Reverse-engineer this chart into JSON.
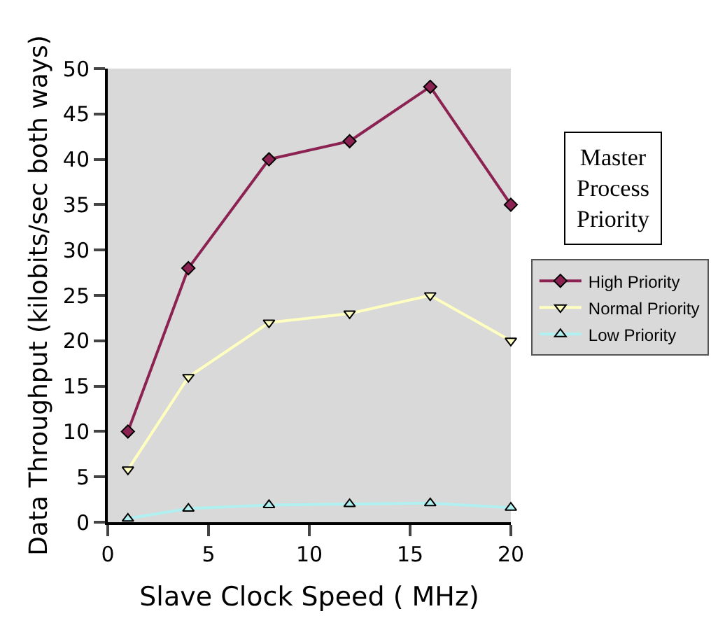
{
  "chart_data": {
    "type": "line",
    "xlabel": "Slave Clock Speed ( MHz)",
    "ylabel": "Data Throughput (kilobits/sec both ways)",
    "legend_title": "Master Process Priority",
    "x": [
      1,
      4,
      8,
      12,
      16,
      20
    ],
    "series": [
      {
        "name": "High Priority",
        "color": "#8b2252",
        "marker": "diamond",
        "values": [
          10,
          28,
          40,
          42,
          48,
          35
        ]
      },
      {
        "name": "Normal Priority",
        "color": "#ffffc0",
        "marker": "triangle-down",
        "values": [
          5.8,
          16,
          22,
          23,
          25,
          20
        ]
      },
      {
        "name": "Low Priority",
        "color": "#b0f0f0",
        "marker": "triangle-up",
        "values": [
          0.4,
          1.5,
          1.9,
          2.0,
          2.1,
          1.6
        ]
      }
    ],
    "xlim": [
      0,
      20
    ],
    "xticks": [
      0,
      5,
      10,
      15,
      20
    ],
    "ylim": [
      0,
      50
    ],
    "yticks": [
      0,
      5,
      10,
      15,
      20,
      25,
      30,
      35,
      40,
      45,
      50
    ],
    "grid": false,
    "legend": "right",
    "line_style": "solid"
  }
}
